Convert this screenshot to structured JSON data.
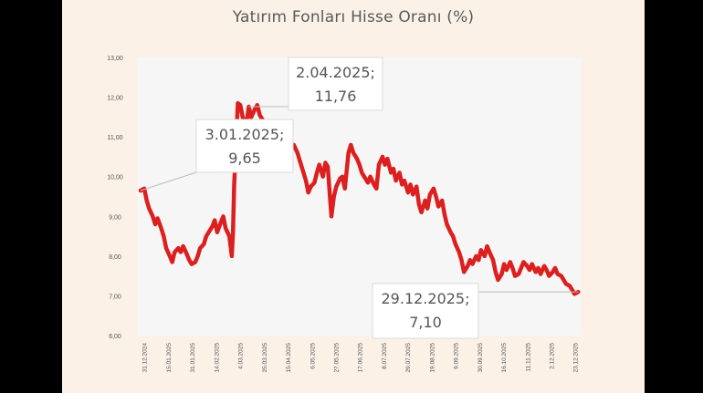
{
  "chart_data": {
    "type": "line",
    "title": "Yatırım Fonları Hisse Oranı (%)",
    "xlabel": "",
    "ylabel": "",
    "ylim": [
      6.0,
      13.0
    ],
    "yticks": [
      "13,00",
      "12,00",
      "11,00",
      "10,00",
      "9,00",
      "8,00",
      "7,00",
      "6,00"
    ],
    "ytick_values": [
      13,
      12,
      11,
      10,
      9,
      8,
      7,
      6
    ],
    "xticks": [
      "31.12.2024",
      "15.01.2025",
      "31.01.2025",
      "14.02.2025",
      "4.03.2025",
      "25.03.2025",
      "15.04.2025",
      "6.05.2025",
      "27.05.2025",
      "17.06.2025",
      "8.07.2025",
      "29.07.2025",
      "19.08.2025",
      "9.09.2025",
      "30.09.2025",
      "16.10.2025",
      "11.11.2025",
      "2.12.2025",
      "23.12.2025"
    ],
    "grid": false,
    "line_color": "#dc1f1f",
    "series": [
      {
        "points": [
          [
            "2025-01-03",
            9.65
          ],
          [
            "2025-01-06",
            9.7
          ],
          [
            "2025-01-08",
            9.4
          ],
          [
            "2025-01-10",
            9.2
          ],
          [
            "2025-01-13",
            9.0
          ],
          [
            "2025-01-15",
            8.8
          ],
          [
            "2025-01-17",
            8.95
          ],
          [
            "2025-01-20",
            8.7
          ],
          [
            "2025-01-22",
            8.5
          ],
          [
            "2025-01-24",
            8.2
          ],
          [
            "2025-01-27",
            8.0
          ],
          [
            "2025-01-29",
            7.85
          ],
          [
            "2025-01-31",
            8.1
          ],
          [
            "2025-02-03",
            8.2
          ],
          [
            "2025-02-05",
            8.1
          ],
          [
            "2025-02-07",
            8.25
          ],
          [
            "2025-02-10",
            8.05
          ],
          [
            "2025-02-12",
            7.9
          ],
          [
            "2025-02-14",
            7.8
          ],
          [
            "2025-02-17",
            7.85
          ],
          [
            "2025-02-19",
            8.0
          ],
          [
            "2025-02-21",
            8.2
          ],
          [
            "2025-02-24",
            8.3
          ],
          [
            "2025-02-26",
            8.5
          ],
          [
            "2025-02-28",
            8.6
          ],
          [
            "2025-03-03",
            8.75
          ],
          [
            "2025-03-05",
            8.9
          ],
          [
            "2025-03-07",
            8.6
          ],
          [
            "2025-03-10",
            8.85
          ],
          [
            "2025-03-12",
            9.0
          ],
          [
            "2025-03-14",
            8.7
          ],
          [
            "2025-03-17",
            8.5
          ],
          [
            "2025-03-19",
            8.0
          ],
          [
            "2025-03-20",
            8.6
          ],
          [
            "2025-03-21",
            9.8
          ],
          [
            "2025-03-24",
            11.85
          ],
          [
            "2025-03-26",
            11.8
          ],
          [
            "2025-03-28",
            11.5
          ],
          [
            "2025-03-31",
            11.3
          ],
          [
            "2025-04-02",
            11.76
          ],
          [
            "2025-04-04",
            11.5
          ],
          [
            "2025-04-07",
            11.7
          ],
          [
            "2025-04-09",
            11.8
          ],
          [
            "2025-04-11",
            11.55
          ],
          [
            "2025-04-14",
            11.4
          ],
          [
            "2025-04-16",
            11.0
          ],
          [
            "2025-04-18",
            10.9
          ],
          [
            "2025-04-21",
            10.7
          ],
          [
            "2025-04-23",
            10.55
          ],
          [
            "2025-04-25",
            10.65
          ],
          [
            "2025-04-28",
            10.45
          ],
          [
            "2025-04-30",
            10.6
          ],
          [
            "2025-05-02",
            10.35
          ],
          [
            "2025-05-05",
            10.5
          ],
          [
            "2025-05-07",
            10.7
          ],
          [
            "2025-05-09",
            10.8
          ],
          [
            "2025-05-12",
            10.6
          ],
          [
            "2025-05-14",
            10.4
          ],
          [
            "2025-05-16",
            10.2
          ],
          [
            "2025-05-19",
            9.9
          ],
          [
            "2025-05-21",
            9.6
          ],
          [
            "2025-05-23",
            9.75
          ],
          [
            "2025-05-26",
            9.85
          ],
          [
            "2025-05-28",
            10.1
          ],
          [
            "2025-05-30",
            10.3
          ],
          [
            "2025-06-02",
            10.0
          ],
          [
            "2025-06-04",
            10.35
          ],
          [
            "2025-06-06",
            10.25
          ],
          [
            "2025-06-09",
            9.0
          ],
          [
            "2025-06-11",
            9.5
          ],
          [
            "2025-06-13",
            9.75
          ],
          [
            "2025-06-16",
            9.95
          ],
          [
            "2025-06-18",
            10.0
          ],
          [
            "2025-06-20",
            9.7
          ],
          [
            "2025-06-23",
            10.6
          ],
          [
            "2025-06-25",
            10.8
          ],
          [
            "2025-06-27",
            10.6
          ],
          [
            "2025-06-30",
            10.45
          ],
          [
            "2025-07-02",
            10.3
          ],
          [
            "2025-07-04",
            10.1
          ],
          [
            "2025-07-07",
            9.95
          ],
          [
            "2025-07-09",
            9.85
          ],
          [
            "2025-07-11",
            10.0
          ],
          [
            "2025-07-14",
            9.8
          ],
          [
            "2025-07-16",
            9.7
          ],
          [
            "2025-07-18",
            10.3
          ],
          [
            "2025-07-21",
            10.5
          ],
          [
            "2025-07-23",
            10.3
          ],
          [
            "2025-07-25",
            10.45
          ],
          [
            "2025-07-28",
            10.1
          ],
          [
            "2025-07-30",
            10.2
          ],
          [
            "2025-08-01",
            9.9
          ],
          [
            "2025-08-04",
            10.1
          ],
          [
            "2025-08-06",
            9.8
          ],
          [
            "2025-08-08",
            9.9
          ],
          [
            "2025-08-11",
            9.6
          ],
          [
            "2025-08-13",
            9.8
          ],
          [
            "2025-08-15",
            9.55
          ],
          [
            "2025-08-18",
            9.75
          ],
          [
            "2025-08-20",
            9.3
          ],
          [
            "2025-08-22",
            9.1
          ],
          [
            "2025-08-25",
            9.4
          ],
          [
            "2025-08-27",
            9.2
          ],
          [
            "2025-08-29",
            9.55
          ],
          [
            "2025-09-01",
            9.7
          ],
          [
            "2025-09-03",
            9.5
          ],
          [
            "2025-09-05",
            9.25
          ],
          [
            "2025-09-08",
            9.4
          ],
          [
            "2025-09-10",
            9.05
          ],
          [
            "2025-09-12",
            8.8
          ],
          [
            "2025-09-15",
            8.6
          ],
          [
            "2025-09-17",
            8.5
          ],
          [
            "2025-09-19",
            8.3
          ],
          [
            "2025-09-22",
            8.1
          ],
          [
            "2025-09-24",
            7.9
          ],
          [
            "2025-09-26",
            7.6
          ],
          [
            "2025-09-29",
            7.75
          ],
          [
            "2025-10-01",
            7.9
          ],
          [
            "2025-10-03",
            7.8
          ],
          [
            "2025-10-06",
            8.0
          ],
          [
            "2025-10-08",
            7.9
          ],
          [
            "2025-10-10",
            8.15
          ],
          [
            "2025-10-13",
            8.0
          ],
          [
            "2025-10-15",
            8.25
          ],
          [
            "2025-10-17",
            8.1
          ],
          [
            "2025-10-20",
            7.9
          ],
          [
            "2025-10-22",
            7.6
          ],
          [
            "2025-10-24",
            7.4
          ],
          [
            "2025-10-27",
            7.55
          ],
          [
            "2025-10-29",
            7.8
          ],
          [
            "2025-10-31",
            7.65
          ],
          [
            "2025-11-03",
            7.85
          ],
          [
            "2025-11-05",
            7.7
          ],
          [
            "2025-11-07",
            7.5
          ],
          [
            "2025-11-10",
            7.55
          ],
          [
            "2025-11-12",
            7.7
          ],
          [
            "2025-11-14",
            7.85
          ],
          [
            "2025-11-17",
            7.75
          ],
          [
            "2025-11-19",
            7.65
          ],
          [
            "2025-11-21",
            7.8
          ],
          [
            "2025-11-24",
            7.6
          ],
          [
            "2025-11-26",
            7.7
          ],
          [
            "2025-11-28",
            7.55
          ],
          [
            "2025-12-01",
            7.75
          ],
          [
            "2025-12-03",
            7.65
          ],
          [
            "2025-12-05",
            7.5
          ],
          [
            "2025-12-08",
            7.6
          ],
          [
            "2025-12-10",
            7.7
          ],
          [
            "2025-12-12",
            7.55
          ],
          [
            "2025-12-15",
            7.5
          ],
          [
            "2025-12-17",
            7.4
          ],
          [
            "2025-12-19",
            7.3
          ],
          [
            "2025-12-22",
            7.25
          ],
          [
            "2025-12-24",
            7.15
          ],
          [
            "2025-12-26",
            7.05
          ],
          [
            "2025-12-29",
            7.1
          ]
        ]
      }
    ],
    "annotations": [
      {
        "line1": "3.01.2025;",
        "line2": "9,65",
        "x": "2025-01-03",
        "y": 9.65
      },
      {
        "line1": "2.04.2025;",
        "line2": "11,76",
        "x": "2025-04-02",
        "y": 11.76
      },
      {
        "line1": "29.12.2025;",
        "line2": "7,10",
        "x": "2025-12-29",
        "y": 7.1
      }
    ]
  }
}
